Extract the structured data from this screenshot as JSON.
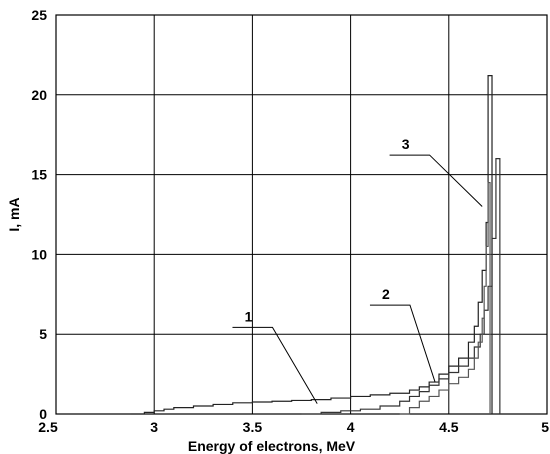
{
  "chart_data": {
    "type": "line",
    "xlabel": "Energy of electrons, MeV",
    "ylabel": "I, mA",
    "xlim": [
      2.5,
      5
    ],
    "ylim": [
      0,
      25
    ],
    "grid": true,
    "x_ticks": [
      "2.5",
      "3",
      "3.5",
      "4",
      "4.5",
      "5"
    ],
    "y_ticks": [
      "0",
      "5",
      "10",
      "15",
      "20",
      "25"
    ],
    "series": [
      {
        "name": "1",
        "color": "#222222",
        "step": true,
        "points": [
          [
            2.88,
            0.0
          ],
          [
            2.95,
            0.1
          ],
          [
            3.0,
            0.2
          ],
          [
            3.05,
            0.3
          ],
          [
            3.1,
            0.4
          ],
          [
            3.2,
            0.5
          ],
          [
            3.3,
            0.6
          ],
          [
            3.4,
            0.7
          ],
          [
            3.5,
            0.75
          ],
          [
            3.6,
            0.8
          ],
          [
            3.7,
            0.85
          ],
          [
            3.8,
            0.9
          ],
          [
            3.9,
            1.0
          ],
          [
            4.0,
            1.1
          ],
          [
            4.1,
            1.2
          ],
          [
            4.2,
            1.3
          ],
          [
            4.3,
            1.5
          ],
          [
            4.35,
            1.7
          ],
          [
            4.4,
            2.0
          ],
          [
            4.45,
            2.5
          ],
          [
            4.5,
            3.0
          ],
          [
            4.55,
            3.5
          ],
          [
            4.6,
            4.5
          ],
          [
            4.63,
            5.5
          ],
          [
            4.65,
            7.0
          ],
          [
            4.67,
            9.0
          ],
          [
            4.69,
            12.0
          ],
          [
            4.7,
            21.2
          ],
          [
            4.72,
            21.2
          ],
          [
            4.72,
            0.0
          ]
        ]
      },
      {
        "name": "2",
        "color": "#333333",
        "step": true,
        "points": [
          [
            3.75,
            0.0
          ],
          [
            3.85,
            0.1
          ],
          [
            3.95,
            0.2
          ],
          [
            4.05,
            0.3
          ],
          [
            4.15,
            0.5
          ],
          [
            4.25,
            0.8
          ],
          [
            4.3,
            1.1
          ],
          [
            4.35,
            1.4
          ],
          [
            4.4,
            1.8
          ],
          [
            4.45,
            2.2
          ],
          [
            4.5,
            2.6
          ],
          [
            4.55,
            3.0
          ],
          [
            4.6,
            3.5
          ],
          [
            4.63,
            4.2
          ],
          [
            4.66,
            5.0
          ],
          [
            4.68,
            6.5
          ],
          [
            4.7,
            8.0
          ],
          [
            4.72,
            11.0
          ],
          [
            4.74,
            16.0
          ],
          [
            4.76,
            16.0
          ],
          [
            4.76,
            0.0
          ]
        ]
      },
      {
        "name": "3",
        "color": "#555555",
        "step": true,
        "points": [
          [
            4.25,
            0.0
          ],
          [
            4.3,
            0.4
          ],
          [
            4.35,
            0.8
          ],
          [
            4.4,
            1.1
          ],
          [
            4.45,
            1.5
          ],
          [
            4.5,
            1.9
          ],
          [
            4.55,
            2.3
          ],
          [
            4.6,
            2.8
          ],
          [
            4.63,
            3.5
          ],
          [
            4.65,
            4.5
          ],
          [
            4.67,
            6.0
          ],
          [
            4.68,
            8.0
          ],
          [
            4.69,
            10.5
          ],
          [
            4.7,
            14.5
          ],
          [
            4.71,
            14.5
          ],
          [
            4.71,
            0.0
          ]
        ]
      }
    ],
    "annotations": [
      {
        "text": "1",
        "x": 3.48,
        "y": 5.8,
        "series": "1",
        "target": [
          3.83,
          0.65
        ]
      },
      {
        "text": "2",
        "x": 4.18,
        "y": 7.2,
        "series": "2",
        "target": [
          4.43,
          2.0
        ]
      },
      {
        "text": "3",
        "x": 4.28,
        "y": 16.6,
        "series": "3",
        "target": [
          4.67,
          13.0
        ]
      }
    ]
  }
}
